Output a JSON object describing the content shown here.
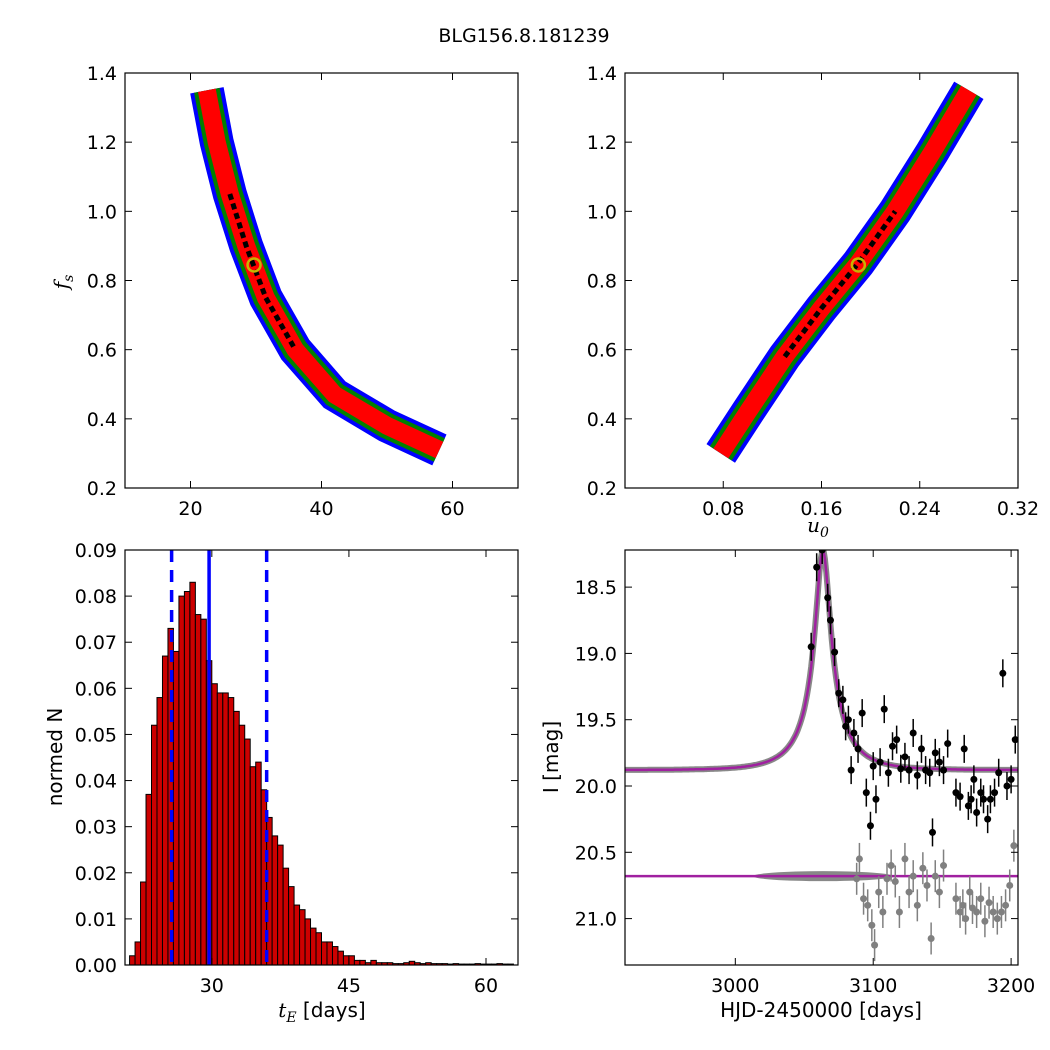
{
  "figure": {
    "title": "BLG156.8.181239"
  },
  "chart_data": [
    {
      "id": "panel-fs-vs-tE",
      "type": "heatmap",
      "xlim": [
        10,
        70
      ],
      "ylim": [
        0.2,
        1.4
      ],
      "xticks": [
        "20",
        "40",
        "60"
      ],
      "yticks": [
        "0.2",
        "0.4",
        "0.6",
        "0.8",
        "1.0",
        "1.2",
        "1.4"
      ],
      "ylabel_italic": "f",
      "ylabel_sub": "s",
      "xlabel": "",
      "bands": [
        {
          "level": "outer",
          "color": "#0000ff"
        },
        {
          "level": "third",
          "color": "#008000"
        },
        {
          "level": "second",
          "color": "#ff0000"
        },
        {
          "level": "best",
          "color": "#000000"
        }
      ],
      "curve": [
        [
          22.5,
          1.35
        ],
        [
          24,
          1.2
        ],
        [
          26,
          1.05
        ],
        [
          28.5,
          0.9
        ],
        [
          31.5,
          0.75
        ],
        [
          36,
          0.6
        ],
        [
          42,
          0.47
        ],
        [
          50,
          0.38
        ],
        [
          58,
          0.31
        ]
      ],
      "best_fit": {
        "x": 29.7,
        "y": 0.845,
        "ring_color": "#c8b400"
      }
    },
    {
      "id": "panel-fs-vs-u0",
      "type": "heatmap",
      "xlim": [
        0.0,
        0.32
      ],
      "ylim": [
        0.2,
        1.4
      ],
      "xticks": [
        "0.08",
        "0.16",
        "0.24",
        "0.32"
      ],
      "yticks": [
        "0.2",
        "0.4",
        "0.6",
        "0.8",
        "1.0",
        "1.2",
        "1.4"
      ],
      "xlabel_italic": "u",
      "xlabel_sub": "0",
      "curve": [
        [
          0.078,
          0.3
        ],
        [
          0.1,
          0.42
        ],
        [
          0.13,
          0.58
        ],
        [
          0.16,
          0.72
        ],
        [
          0.19,
          0.85
        ],
        [
          0.22,
          1.0
        ],
        [
          0.25,
          1.17
        ],
        [
          0.28,
          1.35
        ]
      ],
      "best_fit": {
        "x": 0.19,
        "y": 0.845,
        "ring_color": "#c8b400"
      }
    },
    {
      "id": "panel-tE-histogram",
      "type": "bar",
      "xlim": [
        20.5,
        63.5
      ],
      "ylim": [
        0.0,
        0.09
      ],
      "xticks": [
        "30",
        "45",
        "60"
      ],
      "yticks": [
        "0.00",
        "0.01",
        "0.02",
        "0.03",
        "0.04",
        "0.05",
        "0.06",
        "0.07",
        "0.08",
        "0.09"
      ],
      "ylabel": "normed N",
      "xlabel_italic": "t",
      "xlabel_sub": "E",
      "xlabel_rest": " [days]",
      "bin_start": 21.0,
      "bin_width": 0.6,
      "values": [
        0.002,
        0.005,
        0.018,
        0.037,
        0.052,
        0.058,
        0.067,
        0.073,
        0.068,
        0.08,
        0.081,
        0.083,
        0.076,
        0.075,
        0.066,
        0.061,
        0.059,
        0.059,
        0.058,
        0.055,
        0.052,
        0.049,
        0.043,
        0.044,
        0.038,
        0.032,
        0.028,
        0.026,
        0.021,
        0.017,
        0.013,
        0.012,
        0.01,
        0.008,
        0.007,
        0.005,
        0.005,
        0.004,
        0.003,
        0.002,
        0.002,
        0.001,
        0.001,
        0.0005,
        0.001,
        0.0005,
        0.0005,
        0.0005,
        0.0003,
        0.0003,
        0.0005,
        0.0008,
        0.0005,
        0.0003,
        0.0005,
        0.0003,
        0.0003,
        0.0003,
        0.0002,
        0.0003,
        0.0002,
        0.0002,
        0.0002,
        0.0003,
        0.0002,
        0.0002,
        0.0002,
        0.0003,
        0.0002,
        0.0002
      ],
      "bar_color": "#cc0000",
      "median": 29.7,
      "interval": [
        25.6,
        36.0
      ],
      "line_color": "#0000ff"
    },
    {
      "id": "panel-light-curve",
      "type": "scatter",
      "xlim": [
        2920,
        3205
      ],
      "ylim": [
        21.35,
        18.22
      ],
      "xticks": [
        "3000",
        "3100",
        "3200"
      ],
      "yticks": [
        "18.5",
        "19.0",
        "19.5",
        "20.0",
        "20.5",
        "21.0"
      ],
      "xlabel": "HJD-2450000 [days]",
      "ylabel": "I [mag]",
      "model": {
        "t0": 3063.5,
        "baseline": 19.88,
        "peak": 18.22,
        "tE": 29.7,
        "u0": 0.19,
        "color": "#a020a0"
      },
      "residual_baseline": 20.68,
      "data_points": [
        [
          3055,
          18.95
        ],
        [
          3059,
          18.35
        ],
        [
          3063,
          18.22
        ],
        [
          3067,
          18.58
        ],
        [
          3069,
          18.75
        ],
        [
          3072,
          18.99
        ],
        [
          3075,
          19.3
        ],
        [
          3078,
          19.35
        ],
        [
          3080,
          19.55
        ],
        [
          3082,
          19.5
        ],
        [
          3084,
          19.88
        ],
        [
          3086,
          19.6
        ],
        [
          3089,
          19.72
        ],
        [
          3092,
          19.45
        ],
        [
          3095,
          20.05
        ],
        [
          3098,
          20.3
        ],
        [
          3100,
          19.85
        ],
        [
          3102,
          20.1
        ],
        [
          3105,
          19.82
        ],
        [
          3108,
          19.42
        ],
        [
          3111,
          19.9
        ],
        [
          3114,
          19.7
        ],
        [
          3117,
          19.65
        ],
        [
          3120,
          19.87
        ],
        [
          3123,
          19.78
        ],
        [
          3126,
          19.88
        ],
        [
          3129,
          19.6
        ],
        [
          3132,
          19.92
        ],
        [
          3135,
          19.72
        ],
        [
          3138,
          19.88
        ],
        [
          3141,
          19.9
        ],
        [
          3143,
          20.35
        ],
        [
          3145,
          19.75
        ],
        [
          3148,
          19.82
        ],
        [
          3151,
          19.88
        ],
        [
          3154,
          19.68
        ],
        [
          3160,
          20.05
        ],
        [
          3163,
          20.08
        ],
        [
          3166,
          19.72
        ],
        [
          3169,
          20.15
        ],
        [
          3171,
          20.1
        ],
        [
          3173,
          19.95
        ],
        [
          3175,
          20.2
        ],
        [
          3178,
          20.05
        ],
        [
          3180,
          20.1
        ],
        [
          3183,
          20.25
        ],
        [
          3185,
          20.1
        ],
        [
          3188,
          20.05
        ],
        [
          3191,
          19.9
        ],
        [
          3194,
          19.15
        ],
        [
          3197,
          20.0
        ],
        [
          3200,
          19.95
        ],
        [
          3203,
          19.65
        ]
      ],
      "residual_points": [
        [
          3088,
          20.7
        ],
        [
          3090,
          20.55
        ],
        [
          3093,
          20.85
        ],
        [
          3096,
          20.9
        ],
        [
          3099,
          21.05
        ],
        [
          3101,
          21.2
        ],
        [
          3104,
          20.8
        ],
        [
          3107,
          20.95
        ],
        [
          3110,
          20.7
        ],
        [
          3113,
          20.6
        ],
        [
          3116,
          20.72
        ],
        [
          3119,
          20.95
        ],
        [
          3123,
          20.55
        ],
        [
          3126,
          20.8
        ],
        [
          3129,
          20.68
        ],
        [
          3132,
          20.9
        ],
        [
          3136,
          20.62
        ],
        [
          3139,
          20.75
        ],
        [
          3142,
          21.15
        ],
        [
          3145,
          20.68
        ],
        [
          3148,
          20.8
        ],
        [
          3151,
          20.6
        ],
        [
          3160,
          20.85
        ],
        [
          3163,
          20.95
        ],
        [
          3165,
          20.9
        ],
        [
          3167,
          21.0
        ],
        [
          3170,
          20.8
        ],
        [
          3172,
          20.92
        ],
        [
          3175,
          20.95
        ],
        [
          3178,
          20.85
        ],
        [
          3181,
          21.02
        ],
        [
          3184,
          20.88
        ],
        [
          3187,
          20.95
        ],
        [
          3190,
          21.0
        ],
        [
          3193,
          20.95
        ],
        [
          3196,
          20.9
        ],
        [
          3199,
          20.75
        ],
        [
          3202,
          20.45
        ]
      ]
    }
  ]
}
